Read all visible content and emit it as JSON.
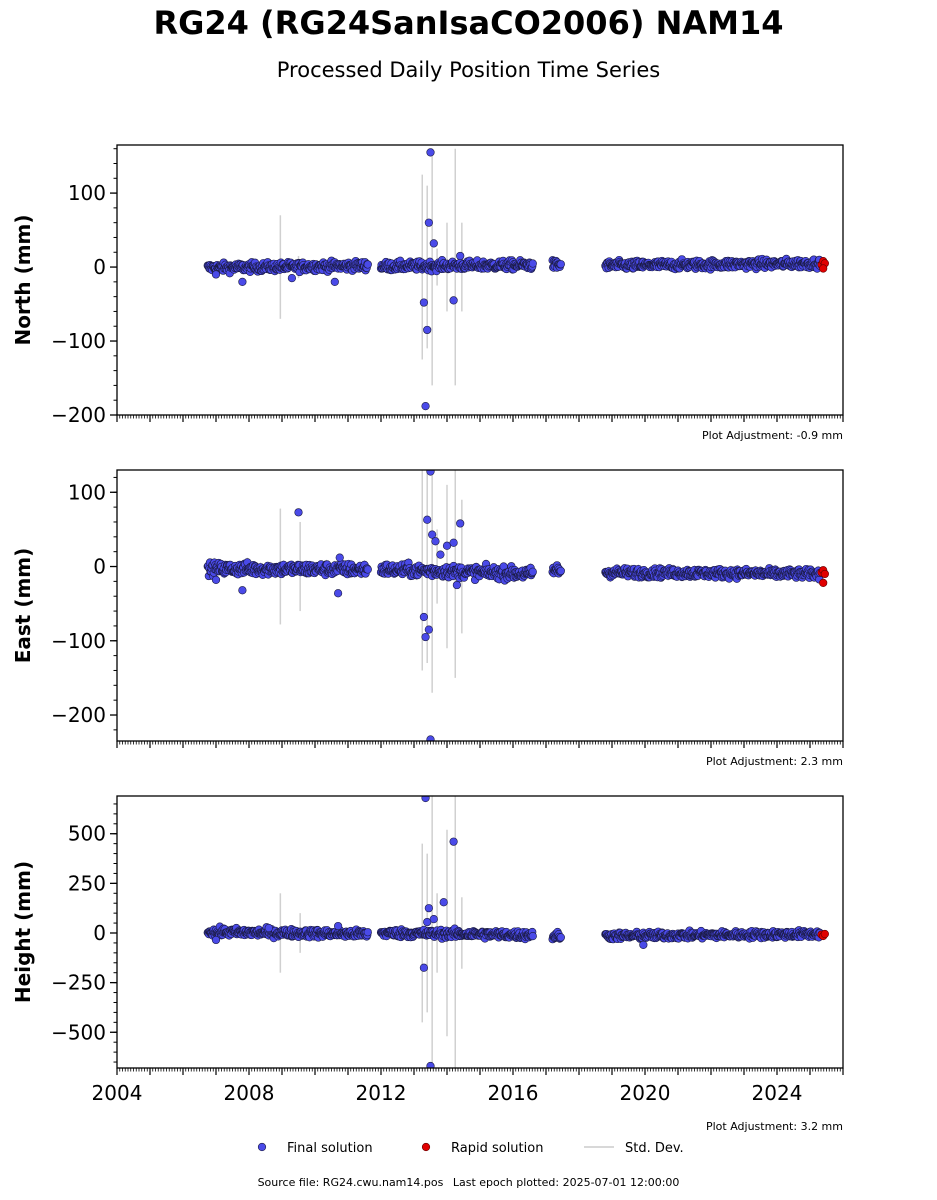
{
  "title": "RG24 (RG24SanIsaCO2006) NAM14",
  "subtitle": "Processed Daily Position Time Series",
  "footer": {
    "source": "Source file: RG24.cwu.nam14.pos",
    "last_epoch": "Last epoch plotted: 2025-07-01 12:00:00"
  },
  "legend": {
    "placement": "bottom-center",
    "items": [
      {
        "label": "Final solution",
        "color": "#4a4ae8"
      },
      {
        "label": "Rapid solution",
        "color": "#e00000"
      },
      {
        "label": "Std. Dev.",
        "color": "#cccccc"
      }
    ]
  },
  "colors": {
    "final_fill": "#4a4ae8",
    "final_edge": "#1a1a40",
    "rapid_fill": "#e00000",
    "stddev": "#d0d0d0"
  },
  "chart_data": [
    {
      "type": "scatter",
      "ylabel": "North (mm)",
      "xlim": [
        2004,
        2026
      ],
      "ylim": [
        -200,
        165
      ],
      "yticks": [
        -200,
        -100,
        0,
        100
      ],
      "yminor_step": 20,
      "xticks": [
        2004,
        2008,
        2012,
        2016,
        2020,
        2024
      ],
      "show_xtick_labels": false,
      "adjustment": "Plot Adjustment: -0.9 mm",
      "segments": [
        {
          "start": 2006.75,
          "end": 2011.6,
          "c0": -1,
          "c1": 2,
          "noise": 3
        },
        {
          "start": 2012.0,
          "end": 2016.6,
          "c0": 1,
          "c1": 3,
          "noise": 3
        },
        {
          "start": 2017.2,
          "end": 2017.45,
          "c0": 3,
          "c1": 3,
          "noise": 3
        },
        {
          "start": 2018.8,
          "end": 2025.3,
          "c0": 2,
          "c1": 5,
          "noise": 3
        }
      ],
      "outliers": [
        [
          2007.0,
          -10
        ],
        [
          2007.8,
          -20
        ],
        [
          2009.3,
          -15
        ],
        [
          2010.6,
          -20
        ],
        [
          2013.3,
          -48
        ],
        [
          2013.4,
          -85
        ],
        [
          2013.35,
          -188
        ],
        [
          2013.45,
          60
        ],
        [
          2013.5,
          155
        ],
        [
          2013.6,
          32
        ],
        [
          2014.2,
          -45
        ],
        [
          2014.4,
          15
        ]
      ],
      "stddev_bars": [
        [
          2008.95,
          70
        ],
        [
          2009.5,
          15
        ],
        [
          2013.25,
          125
        ],
        [
          2013.4,
          110
        ],
        [
          2013.55,
          160
        ],
        [
          2013.7,
          25
        ],
        [
          2014.0,
          60
        ],
        [
          2014.25,
          160
        ],
        [
          2014.45,
          60
        ]
      ],
      "rapid": [
        [
          2025.35,
          3
        ],
        [
          2025.4,
          8
        ],
        [
          2025.45,
          5
        ],
        [
          2025.4,
          -2
        ]
      ]
    },
    {
      "type": "scatter",
      "ylabel": "East (mm)",
      "xlim": [
        2004,
        2026
      ],
      "ylim": [
        -235,
        130
      ],
      "yticks": [
        -200,
        -100,
        0,
        100
      ],
      "yminor_step": 20,
      "xticks": [
        2004,
        2008,
        2012,
        2016,
        2020,
        2024
      ],
      "show_xtick_labels": false,
      "adjustment": "Plot Adjustment: 2.3 mm",
      "segments": [
        {
          "start": 2006.75,
          "end": 2011.6,
          "c0": -3,
          "c1": -4,
          "noise": 4
        },
        {
          "start": 2012.0,
          "end": 2016.6,
          "c0": -4,
          "c1": -10,
          "noise": 4
        },
        {
          "start": 2017.2,
          "end": 2017.45,
          "c0": -5,
          "c1": -5,
          "noise": 4
        },
        {
          "start": 2018.8,
          "end": 2025.3,
          "c0": -8,
          "c1": -10,
          "noise": 3
        }
      ],
      "outliers": [
        [
          2007.0,
          -18
        ],
        [
          2007.8,
          -32
        ],
        [
          2009.5,
          73
        ],
        [
          2010.7,
          -36
        ],
        [
          2010.75,
          12
        ],
        [
          2013.3,
          -68
        ],
        [
          2013.35,
          -95
        ],
        [
          2013.45,
          -85
        ],
        [
          2013.5,
          -233
        ],
        [
          2013.4,
          63
        ],
        [
          2013.55,
          43
        ],
        [
          2013.5,
          128
        ],
        [
          2013.65,
          34
        ],
        [
          2013.8,
          16
        ],
        [
          2014.0,
          28
        ],
        [
          2014.2,
          32
        ],
        [
          2014.4,
          58
        ],
        [
          2014.3,
          -25
        ]
      ],
      "stddev_bars": [
        [
          2008.95,
          78
        ],
        [
          2009.55,
          60
        ],
        [
          2013.25,
          140
        ],
        [
          2013.4,
          130
        ],
        [
          2013.55,
          170
        ],
        [
          2013.7,
          50
        ],
        [
          2014.0,
          110
        ],
        [
          2014.25,
          150
        ],
        [
          2014.45,
          90
        ]
      ],
      "rapid": [
        [
          2025.35,
          -8
        ],
        [
          2025.4,
          -5
        ],
        [
          2025.45,
          -10
        ],
        [
          2025.4,
          -22
        ]
      ]
    },
    {
      "type": "scatter",
      "ylabel": "Height (mm)",
      "xlim": [
        2004,
        2026
      ],
      "ylim": [
        -680,
        690
      ],
      "yticks": [
        -500,
        -250,
        0,
        250,
        500
      ],
      "yminor_step": 50,
      "xticks": [
        2004,
        2008,
        2012,
        2016,
        2020,
        2024
      ],
      "show_xtick_labels": true,
      "adjustment": "Plot Adjustment: 3.2 mm",
      "segments": [
        {
          "start": 2006.75,
          "end": 2011.6,
          "c0": 5,
          "c1": -5,
          "noise": 10
        },
        {
          "start": 2012.0,
          "end": 2016.6,
          "c0": 0,
          "c1": -10,
          "noise": 10
        },
        {
          "start": 2017.2,
          "end": 2017.45,
          "c0": -15,
          "c1": -15,
          "noise": 10
        },
        {
          "start": 2018.8,
          "end": 2025.3,
          "c0": -15,
          "c1": -5,
          "noise": 9
        }
      ],
      "outliers": [
        [
          2007.0,
          -35
        ],
        [
          2008.6,
          25
        ],
        [
          2010.7,
          35
        ],
        [
          2013.3,
          -175
        ],
        [
          2013.35,
          680
        ],
        [
          2013.4,
          55
        ],
        [
          2013.45,
          125
        ],
        [
          2013.5,
          -670
        ],
        [
          2013.6,
          70
        ],
        [
          2013.9,
          155
        ],
        [
          2014.2,
          460
        ],
        [
          2019.95,
          -60
        ]
      ],
      "stddev_bars": [
        [
          2008.95,
          200
        ],
        [
          2009.55,
          100
        ],
        [
          2013.25,
          450
        ],
        [
          2013.4,
          400
        ],
        [
          2013.55,
          700
        ],
        [
          2013.7,
          200
        ],
        [
          2014.0,
          520
        ],
        [
          2014.25,
          700
        ],
        [
          2014.45,
          180
        ]
      ],
      "rapid": [
        [
          2025.35,
          -8
        ],
        [
          2025.4,
          -15
        ],
        [
          2025.45,
          -5
        ]
      ]
    }
  ]
}
